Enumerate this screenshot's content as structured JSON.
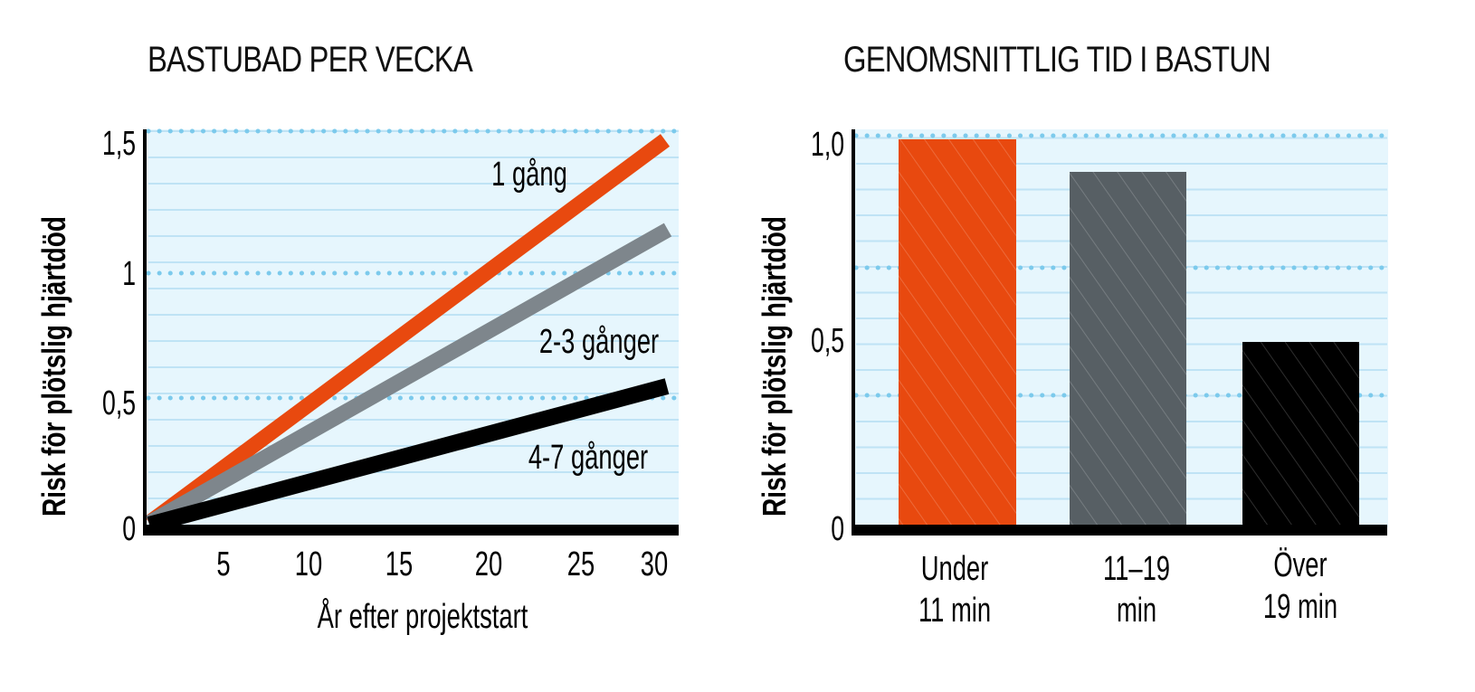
{
  "colors": {
    "orange": "#e8490f",
    "gray_line": "#7e868c",
    "gray_bar": "#575f64",
    "black": "#000000",
    "plot_bg": "#e6f6fd",
    "grid_line": "#bfe3f5",
    "grid_dot": "#7ccaec"
  },
  "left": {
    "title": "BASTUBAD PER VECKA",
    "ylabel": "Risk för plötslig hjärtdöd",
    "xlabel": "År efter projektstart",
    "yticks": [
      "0",
      "0,5",
      "1",
      "1,5"
    ],
    "xticks": [
      "5",
      "10",
      "15",
      "20",
      "25",
      "30"
    ],
    "labels": {
      "s1": "1 gång",
      "s2": "2-3 gånger",
      "s3": "4-7 gånger"
    }
  },
  "right": {
    "title": "GENOMSNITTLIG TID I BASTUN",
    "ylabel": "Risk för plötslig hjärtdöd",
    "yticks": [
      "0",
      "0,5",
      "1,0"
    ],
    "cat1_line1": "Under",
    "cat1_line2": "11 min",
    "cat2_line1": "11–19",
    "cat2_line2": "min",
    "cat3_line1": "Över",
    "cat3_line2": "19 min"
  },
  "chart_data": [
    {
      "type": "line",
      "title": "BASTUBAD PER VECKA",
      "xlabel": "År efter projektstart",
      "ylabel": "Risk för plötslig hjärtdöd",
      "x": [
        0,
        30
      ],
      "xticks": [
        5,
        10,
        15,
        20,
        25,
        30
      ],
      "yticks": [
        0,
        0.5,
        1,
        1.5
      ],
      "ylim": [
        0,
        1.5
      ],
      "xlim": [
        0,
        30
      ],
      "grid": true,
      "series": [
        {
          "name": "1 gång",
          "values": [
            0,
            1.48
          ],
          "color": "#e8490f"
        },
        {
          "name": "2-3 gånger",
          "values": [
            0,
            1.15
          ],
          "color": "#7e868c"
        },
        {
          "name": "4-7 gånger",
          "values": [
            0,
            0.53
          ],
          "color": "#000000"
        }
      ],
      "legend": "inline labels"
    },
    {
      "type": "bar",
      "title": "GENOMSNITTLIG TID I BASTUN",
      "xlabel": "",
      "ylabel": "Risk för plötslig hjärtdöd",
      "categories": [
        "Under 11 min",
        "11–19 min",
        "Över 19 min"
      ],
      "values": [
        0.99,
        0.91,
        0.47
      ],
      "colors": [
        "#e8490f",
        "#575f64",
        "#000000"
      ],
      "yticks": [
        0,
        0.5,
        1.0
      ],
      "ylim": [
        0,
        1.0
      ],
      "grid": true
    }
  ]
}
